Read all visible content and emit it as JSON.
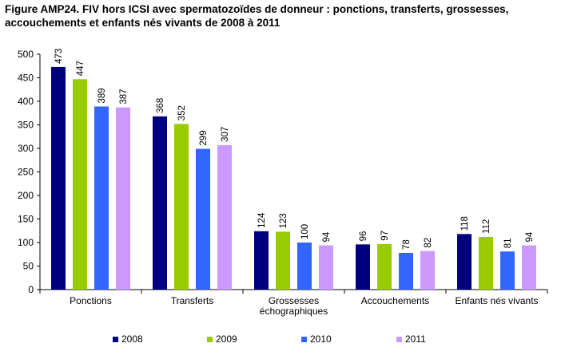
{
  "title": "Figure AMP24. FIV hors ICSI avec spermatozoïdes de donneur : ponctions, transferts, grossesses, accouchements et enfants nés vivants de 2008 à 2011",
  "colors": {
    "2008": "#00007f",
    "2009": "#99cc00",
    "2010": "#3366ff",
    "2011": "#cc99ff"
  },
  "chart_data": {
    "type": "bar",
    "title": "Figure AMP24. FIV hors ICSI avec spermatozoïdes de donneur : ponctions, transferts, grossesses, accouchements et enfants nés vivants de 2008 à 2011",
    "categories": [
      [
        "Ponctions"
      ],
      [
        "Transferts"
      ],
      [
        "Grossesses",
        "échographiques"
      ],
      [
        "Accouchements"
      ],
      [
        "Enfants nés vivants"
      ]
    ],
    "series": [
      {
        "name": "2008",
        "values": [
          473,
          368,
          124,
          96,
          118
        ]
      },
      {
        "name": "2009",
        "values": [
          447,
          352,
          123,
          97,
          112
        ]
      },
      {
        "name": "2010",
        "values": [
          389,
          299,
          100,
          78,
          81
        ]
      },
      {
        "name": "2011",
        "values": [
          387,
          307,
          94,
          82,
          94
        ]
      }
    ],
    "ylim": [
      0,
      500
    ],
    "yticks": [
      0,
      50,
      100,
      150,
      200,
      250,
      300,
      350,
      400,
      450,
      500
    ],
    "grid": false,
    "data_labels": true,
    "legend": "bottom"
  }
}
